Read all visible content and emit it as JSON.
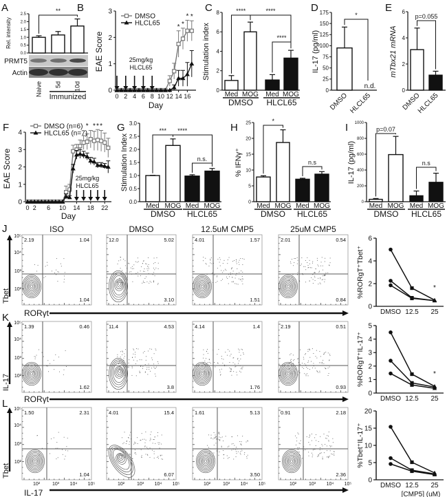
{
  "chart_data": [
    {
      "id": "A",
      "panel_label": "A",
      "type": "bar",
      "categories": [
        "Naive",
        "5d",
        "10d"
      ],
      "values": [
        1.0,
        1.15,
        1.72
      ],
      "errors": [
        0.1,
        0.22,
        0.45
      ],
      "fills": [
        "#ffffff",
        "#ffffff",
        "#ffffff"
      ],
      "ylabel": "Rel. intensity",
      "ylim": [
        0,
        2.5
      ],
      "yticks": [
        "0.0",
        "0.5",
        "1.0",
        "1.5",
        "2.0",
        "2.5"
      ],
      "groups": [
        {
          "label": "Immunized",
          "from": 1,
          "to": 2
        }
      ],
      "significance": [
        {
          "from": 0,
          "to": 2,
          "label": "**"
        }
      ],
      "blot_labels": [
        "PRMT5",
        "Actin"
      ]
    },
    {
      "id": "B",
      "panel_label": "B",
      "type": "line",
      "x": [
        0,
        1,
        2,
        3,
        4,
        5,
        6,
        7,
        8,
        9,
        10,
        11,
        12,
        13,
        14,
        15,
        16,
        17
      ],
      "xlabel": "Day",
      "ylabel": "EAE Score",
      "ylim": [
        0,
        3
      ],
      "yticks": [
        0,
        1,
        2,
        3
      ],
      "xticks": [
        0,
        2,
        4,
        6,
        8,
        10,
        12,
        14,
        16
      ],
      "series": [
        {
          "name": "DMSO",
          "marker": "open-square",
          "color": "#777777",
          "values": [
            0,
            0,
            0,
            0,
            0,
            0,
            0,
            0,
            0,
            0,
            0,
            0,
            0.35,
            0.72,
            1.75,
            1.95,
            2.25,
            2.25
          ],
          "errors": [
            0,
            0,
            0,
            0,
            0,
            0,
            0,
            0,
            0,
            0,
            0,
            0,
            0.2,
            0.3,
            0.5,
            0.4,
            0.4,
            0.38
          ]
        },
        {
          "name": "HLCL65",
          "marker": "filled-triangle",
          "color": "#111111",
          "values": [
            0,
            0,
            0,
            0,
            0,
            0,
            0,
            0,
            0,
            0,
            0,
            0,
            0,
            0.1,
            0.45,
            0.45,
            0.6,
            1.0
          ],
          "errors": [
            0,
            0,
            0,
            0,
            0,
            0,
            0,
            0,
            0,
            0,
            0,
            0,
            0,
            0.1,
            0.3,
            0.3,
            0.45,
            0.5
          ]
        }
      ],
      "treatment_days": [
        0,
        2,
        4,
        6,
        8
      ],
      "annotation": [
        "25mg/kg",
        "HLCL65"
      ],
      "stars": [
        {
          "x": 14,
          "label": "*"
        },
        {
          "x": 15,
          "label": "*"
        },
        {
          "x": 16,
          "label": "*"
        },
        {
          "x": 17,
          "label": "*"
        }
      ],
      "legend": "top-left"
    },
    {
      "id": "C",
      "panel_label": "C",
      "type": "bar",
      "categories": [
        "Med",
        "MOG",
        "Med",
        "MOG"
      ],
      "values": [
        1.0,
        6.0,
        1.05,
        3.3
      ],
      "errors": [
        0.5,
        1.0,
        0.55,
        0.8
      ],
      "fills": [
        "#ffffff",
        "#ffffff",
        "#111111",
        "#111111"
      ],
      "ylabel": "Stimulation index",
      "ylim": [
        0,
        8
      ],
      "yticks": [
        "0",
        "2",
        "4",
        "6",
        "8"
      ],
      "groups": [
        {
          "label": "DMSO",
          "from": 0,
          "to": 1
        },
        {
          "label": "HLCL65",
          "from": 2,
          "to": 3
        }
      ],
      "significance": [
        {
          "from": 0,
          "to": 1,
          "label": "****"
        },
        {
          "from": 1,
          "to": 3,
          "label": "****"
        },
        {
          "from": 2,
          "to": 3,
          "label": "****"
        }
      ]
    },
    {
      "id": "D",
      "panel_label": "D",
      "type": "bar",
      "categories": [
        "DMSO",
        "HLCL65"
      ],
      "values": [
        95,
        null
      ],
      "errors": [
        47,
        null
      ],
      "fills": [
        "#ffffff",
        "#ffffff"
      ],
      "na_label": "n.d.",
      "ylabel": "IL-17 (pg/ml)",
      "ylim": [
        0,
        175
      ],
      "yticks": [
        "0",
        "25",
        "50",
        "75",
        "100",
        "125",
        "150",
        "175"
      ],
      "significance": [
        {
          "from": 0,
          "to": 1,
          "label": "*"
        }
      ]
    },
    {
      "id": "E",
      "panel_label": "E",
      "type": "bar",
      "categories": [
        "DMSO",
        "HLCL65"
      ],
      "values": [
        3.1,
        1.15
      ],
      "errors": [
        1.65,
        0.3
      ],
      "fills": [
        "#ffffff",
        "#111111"
      ],
      "ylabel": "mTbx21 mRNA",
      "ylim": [
        0,
        6
      ],
      "yticks": [
        "0",
        "2",
        "4",
        "6"
      ],
      "significance": [
        {
          "from": 0,
          "to": 1,
          "label": "p=0.055"
        }
      ]
    },
    {
      "id": "F",
      "panel_label": "F",
      "type": "line",
      "x": [
        0,
        1,
        2,
        3,
        4,
        5,
        6,
        7,
        8,
        9,
        10,
        11,
        12,
        13,
        14,
        15,
        16,
        17,
        18,
        19,
        20,
        21,
        22,
        23
      ],
      "xlabel": "Day",
      "ylabel": "EAE Score",
      "ylim": [
        0,
        4
      ],
      "yticks": [
        0,
        1,
        2,
        3,
        4
      ],
      "xticks": [
        0,
        2,
        6,
        10,
        14,
        18,
        22
      ],
      "series": [
        {
          "name": "DMSO (n=6)",
          "marker": "open-square",
          "color": "#777777",
          "values": [
            0,
            0,
            0,
            0,
            0,
            0,
            0,
            0,
            0,
            0,
            0,
            0.55,
            0.7,
            2.9,
            3.0,
            3.2,
            3.4,
            3.45,
            3.6,
            3.5,
            3.55,
            3.5,
            3.4,
            3.1
          ],
          "errors": [
            0,
            0,
            0,
            0,
            0,
            0,
            0,
            0,
            0,
            0,
            0,
            0.35,
            0.3,
            0.35,
            0.3,
            0.35,
            0.4,
            0.45,
            0.5,
            0.55,
            0.6,
            0.6,
            0.55,
            0.55
          ]
        },
        {
          "name": "HLCL65 (n=7)",
          "marker": "filled-triangle",
          "color": "#111111",
          "values": [
            0,
            0,
            0,
            0,
            0,
            0,
            0,
            0,
            0,
            0,
            0,
            0.3,
            0.25,
            1.9,
            2.7,
            2.75,
            2.7,
            2.6,
            2.35,
            2.3,
            2.1,
            2.1,
            2.05,
            2.0
          ],
          "errors": [
            0,
            0,
            0,
            0,
            0,
            0,
            0,
            0,
            0,
            0,
            0,
            0.15,
            0.1,
            0.25,
            0.25,
            0.25,
            0.2,
            0.2,
            0.2,
            0.2,
            0.15,
            0.15,
            0.15,
            0.35
          ]
        }
      ],
      "treatment_days": [
        14,
        16,
        18,
        20,
        22
      ],
      "annotation": [
        "25mg/kg",
        "HLCL65"
      ],
      "stars": [
        {
          "x": 17,
          "label": "*"
        },
        {
          "x": 19,
          "label": "*"
        },
        {
          "x": 20,
          "label": "*"
        },
        {
          "x": 21,
          "label": "*"
        }
      ],
      "legend": "top-left"
    },
    {
      "id": "G",
      "panel_label": "G",
      "type": "bar",
      "categories": [
        "Med",
        "MOG",
        "Med",
        "MOG"
      ],
      "values": [
        1.0,
        2.15,
        0.98,
        1.17
      ],
      "errors": [
        0.01,
        0.25,
        0.05,
        0.1
      ],
      "fills": [
        "#ffffff",
        "#ffffff",
        "#111111",
        "#111111"
      ],
      "ylabel": "Stimulation Index",
      "ylim": [
        0,
        3
      ],
      "yticks": [
        "0.0",
        "0.5",
        "1.0",
        "1.5",
        "2.0",
        "2.5",
        "3.0"
      ],
      "groups": [
        {
          "label": "DMSO",
          "from": 0,
          "to": 1
        },
        {
          "label": "HLCL65",
          "from": 2,
          "to": 3
        }
      ],
      "significance": [
        {
          "from": 0,
          "to": 1,
          "label": "***"
        },
        {
          "from": 0,
          "to": 3,
          "label": "****"
        },
        {
          "from": 2,
          "to": 3,
          "label": "n.s."
        }
      ]
    },
    {
      "id": "H",
      "panel_label": "H",
      "type": "bar",
      "categories": [
        "Med",
        "MOG",
        "Med",
        "MOG"
      ],
      "values": [
        7.8,
        18.7,
        7.1,
        8.7
      ],
      "errors": [
        0.4,
        4.0,
        0.3,
        0.8
      ],
      "fills": [
        "#ffffff",
        "#ffffff",
        "#111111",
        "#111111"
      ],
      "ylabel": "% IFNγ⁺",
      "ylim": [
        0,
        25
      ],
      "yticks": [
        "0",
        "5",
        "10",
        "15",
        "20",
        "25"
      ],
      "groups": [
        {
          "label": "DMSO",
          "from": 0,
          "to": 1
        },
        {
          "label": "HLCL65",
          "from": 2,
          "to": 3
        }
      ],
      "significance": [
        {
          "from": 0,
          "to": 1,
          "label": "*"
        },
        {
          "from": 2,
          "to": 3,
          "label": "n.s"
        }
      ]
    },
    {
      "id": "I",
      "panel_label": "I",
      "type": "bar",
      "categories": [
        "Med",
        "MOG",
        "Med",
        "MOG"
      ],
      "values": [
        30,
        595,
        75,
        245
      ],
      "errors": [
        10,
        230,
        60,
        115
      ],
      "fills": [
        "#ffffff",
        "#ffffff",
        "#111111",
        "#111111"
      ],
      "ylabel": "IL-17 (pg/ml)",
      "ylim": [
        0,
        1000
      ],
      "yticks": [
        "0",
        "200",
        "400",
        "600",
        "800",
        "1000"
      ],
      "groups": [
        {
          "label": "DMSO",
          "from": 0,
          "to": 1
        },
        {
          "label": "HLCL65",
          "from": 2,
          "to": 3
        }
      ],
      "significance": [
        {
          "from": 0,
          "to": 1,
          "label": "p=0.07"
        },
        {
          "from": 2,
          "to": 3,
          "label": "n.s"
        }
      ]
    },
    {
      "id": "J_right",
      "type": "line",
      "categories": [
        "DMSO",
        "12.5",
        "25"
      ],
      "ylabel": "%RORgT⁺Tbet⁺",
      "ylim": [
        0,
        6
      ],
      "yticks": [
        0,
        2,
        4,
        6
      ],
      "series": [
        {
          "values": [
            5.0,
            1.6,
            0.55
          ]
        },
        {
          "values": [
            2.25,
            0.75,
            0.5
          ]
        },
        {
          "values": [
            1.85,
            0.7,
            0.5
          ]
        }
      ],
      "star": "*"
    },
    {
      "id": "K_right",
      "type": "line",
      "categories": [
        "DMSO",
        "12.5",
        "25"
      ],
      "ylabel": "%RORgT⁺IL-17⁺",
      "ylim": [
        0,
        5
      ],
      "yticks": [
        0,
        1,
        2,
        3,
        4,
        5
      ],
      "series": [
        {
          "values": [
            4.5,
            1.4,
            0.5
          ]
        },
        {
          "values": [
            2.4,
            0.75,
            0.45
          ]
        },
        {
          "values": [
            1.45,
            0.6,
            0.35
          ]
        }
      ],
      "star": "*"
    },
    {
      "id": "L_right",
      "type": "line",
      "categories": [
        "DMSO",
        "12.5",
        "25"
      ],
      "ylabel": "%Tbet⁺IL-17⁺",
      "xlabel": "[CMP5] (uM)",
      "ylim": [
        0,
        20
      ],
      "yticks": [
        0,
        5,
        10,
        15,
        20
      ],
      "series": [
        {
          "values": [
            15.4,
            5.1,
            2.0
          ]
        },
        {
          "values": [
            6.3,
            2.8,
            1.7
          ]
        },
        {
          "values": [
            4.6,
            2.5,
            1.5
          ]
        }
      ]
    }
  ],
  "flow": {
    "titles": [
      "ISO",
      "DMSO",
      "12.5uM CMP5",
      "25uM CMP5"
    ],
    "tick_labels": [
      "10²",
      "10³",
      "10⁴",
      "10⁵"
    ],
    "rows": [
      {
        "label": "J",
        "ylabel": "Tbet",
        "xlabel": "RORγt",
        "quadrants": [
          [
            "2.19",
            "1.04",
            "1.04"
          ],
          [
            "12.0",
            "5.02",
            "3.10"
          ],
          [
            "4.01",
            "1.57",
            "1.51"
          ],
          [
            "2.01",
            "0.54",
            "0.84"
          ]
        ]
      },
      {
        "label": "K",
        "ylabel": "IL-17",
        "xlabel": "RORγt",
        "quadrants": [
          [
            "1.39",
            "0.46",
            "1.62"
          ],
          [
            "11.4",
            "4.53",
            "3.8"
          ],
          [
            "4.14",
            "1.4",
            "1.76"
          ],
          [
            "2.19",
            "0.51",
            "0.93"
          ]
        ]
      },
      {
        "label": "L",
        "ylabel": "Tbet",
        "xlabel": "IL-17",
        "quadrants": [
          [
            "1.50",
            "2.31",
            "1.04"
          ],
          [
            "4.01",
            "15.4",
            "6.07"
          ],
          [
            "1.61",
            "5.13",
            "3.50"
          ],
          [
            "0.91",
            "2.18",
            "2.36"
          ]
        ]
      }
    ]
  }
}
